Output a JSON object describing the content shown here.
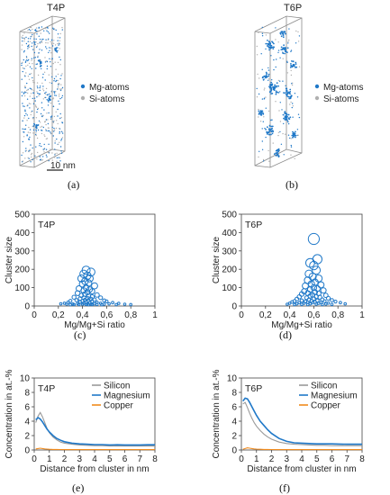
{
  "colors": {
    "mg": "#1f78c8",
    "si": "#b0b0b0",
    "silicon": "#9a9a9a",
    "magnesium": "#1f78c8",
    "copper": "#f08a1c",
    "axis": "#444444"
  },
  "panels": {
    "a": {
      "title": "T4P",
      "legend": [
        "Mg-atoms",
        "Si-atoms"
      ],
      "scale": "10 nm",
      "caption": "(a)"
    },
    "b": {
      "title": "T6P",
      "legend": [
        "Mg-atoms",
        "Si-atoms"
      ],
      "caption": "(b)"
    },
    "c": {
      "caption": "(c)"
    },
    "d": {
      "caption": "(d)"
    },
    "e": {
      "caption": "(e)"
    },
    "f": {
      "caption": "(f)"
    }
  },
  "chart_data": [
    {
      "id": "c",
      "type": "scatter",
      "panel_label": "T4P",
      "xlabel": "Mg/Mg+Si ratio",
      "ylabel": "Cluster size",
      "xlim": [
        0,
        1
      ],
      "ylim": [
        0,
        500
      ],
      "xticks": [
        "0",
        "0,2",
        "0,4",
        "0,6",
        "0,8",
        "1"
      ],
      "yticks": [
        "0",
        "100",
        "200",
        "300",
        "400",
        "500"
      ],
      "points": [
        [
          0.43,
          195
        ],
        [
          0.47,
          185
        ],
        [
          0.41,
          175
        ],
        [
          0.44,
          165
        ],
        [
          0.39,
          150
        ],
        [
          0.46,
          150
        ],
        [
          0.42,
          135
        ],
        [
          0.45,
          125
        ],
        [
          0.4,
          120
        ],
        [
          0.5,
          110
        ],
        [
          0.43,
          100
        ],
        [
          0.37,
          95
        ],
        [
          0.46,
          90
        ],
        [
          0.41,
          85
        ],
        [
          0.48,
          80
        ],
        [
          0.44,
          75
        ],
        [
          0.36,
          70
        ],
        [
          0.42,
          65
        ],
        [
          0.52,
          60
        ],
        [
          0.39,
          58
        ],
        [
          0.45,
          55
        ],
        [
          0.48,
          50
        ],
        [
          0.33,
          48
        ],
        [
          0.41,
          45
        ],
        [
          0.55,
          45
        ],
        [
          0.44,
          42
        ],
        [
          0.38,
          40
        ],
        [
          0.47,
          38
        ],
        [
          0.5,
          35
        ],
        [
          0.42,
          33
        ],
        [
          0.35,
          32
        ],
        [
          0.58,
          30
        ],
        [
          0.45,
          30
        ],
        [
          0.4,
          28
        ],
        [
          0.3,
          28
        ],
        [
          0.6,
          25
        ],
        [
          0.48,
          25
        ],
        [
          0.43,
          22
        ],
        [
          0.38,
          22
        ],
        [
          0.52,
          20
        ],
        [
          0.28,
          20
        ],
        [
          0.65,
          18
        ],
        [
          0.46,
          18
        ],
        [
          0.41,
          15
        ],
        [
          0.25,
          15
        ],
        [
          0.55,
          15
        ],
        [
          0.7,
          14
        ],
        [
          0.36,
          13
        ],
        [
          0.5,
          12
        ],
        [
          0.62,
          12
        ],
        [
          0.44,
          12
        ],
        [
          0.22,
          12
        ],
        [
          0.32,
          11
        ],
        [
          0.47,
          10
        ],
        [
          0.4,
          10
        ],
        [
          0.58,
          10
        ],
        [
          0.75,
          10
        ],
        [
          0.27,
          10
        ],
        [
          0.52,
          9
        ],
        [
          0.43,
          9
        ],
        [
          0.37,
          8
        ],
        [
          0.68,
          8
        ],
        [
          0.33,
          8
        ],
        [
          0.48,
          8
        ],
        [
          0.8,
          8
        ],
        [
          0.56,
          7
        ],
        [
          0.45,
          7
        ],
        [
          0.3,
          7
        ]
      ]
    },
    {
      "id": "d",
      "type": "scatter",
      "panel_label": "T6P",
      "xlabel": "Mg/Mg+Si ratio",
      "ylabel": "Cluster size",
      "xlim": [
        0,
        1
      ],
      "ylim": [
        0,
        500
      ],
      "xticks": [
        "0",
        "0,2",
        "0,4",
        "0,6",
        "0,8",
        "1"
      ],
      "yticks": [
        "0",
        "100",
        "200",
        "300",
        "400",
        "500"
      ],
      "points": [
        [
          0.6,
          365
        ],
        [
          0.63,
          255
        ],
        [
          0.57,
          235
        ],
        [
          0.6,
          220
        ],
        [
          0.62,
          195
        ],
        [
          0.56,
          175
        ],
        [
          0.59,
          160
        ],
        [
          0.64,
          150
        ],
        [
          0.55,
          140
        ],
        [
          0.61,
          130
        ],
        [
          0.58,
          120
        ],
        [
          0.66,
          115
        ],
        [
          0.53,
          110
        ],
        [
          0.6,
          100
        ],
        [
          0.63,
          95
        ],
        [
          0.57,
          90
        ],
        [
          0.68,
          85
        ],
        [
          0.52,
          80
        ],
        [
          0.61,
          75
        ],
        [
          0.55,
          70
        ],
        [
          0.64,
          68
        ],
        [
          0.5,
          65
        ],
        [
          0.59,
          60
        ],
        [
          0.7,
          58
        ],
        [
          0.57,
          55
        ],
        [
          0.62,
          52
        ],
        [
          0.48,
          50
        ],
        [
          0.65,
          48
        ],
        [
          0.54,
          45
        ],
        [
          0.72,
          42
        ],
        [
          0.6,
          40
        ],
        [
          0.46,
          38
        ],
        [
          0.67,
          35
        ],
        [
          0.56,
          34
        ],
        [
          0.75,
          32
        ],
        [
          0.63,
          30
        ],
        [
          0.5,
          30
        ],
        [
          0.58,
          28
        ],
        [
          0.44,
          27
        ],
        [
          0.69,
          26
        ],
        [
          0.53,
          25
        ],
        [
          0.78,
          24
        ],
        [
          0.61,
          22
        ],
        [
          0.42,
          22
        ],
        [
          0.55,
          20
        ],
        [
          0.66,
          20
        ],
        [
          0.48,
          18
        ],
        [
          0.82,
          18
        ],
        [
          0.59,
          17
        ],
        [
          0.72,
          16
        ],
        [
          0.4,
          15
        ],
        [
          0.52,
          15
        ],
        [
          0.64,
          14
        ],
        [
          0.86,
          12
        ],
        [
          0.57,
          12
        ],
        [
          0.46,
          12
        ],
        [
          0.7,
          11
        ],
        [
          0.38,
          10
        ],
        [
          0.62,
          10
        ],
        [
          0.75,
          9
        ],
        [
          0.5,
          9
        ],
        [
          0.55,
          8
        ],
        [
          0.67,
          8
        ],
        [
          0.44,
          8
        ]
      ]
    },
    {
      "id": "e",
      "type": "line",
      "panel_label": "T4P",
      "xlabel": "Distance from cluster in nm",
      "ylabel": "Concentration in at.-%",
      "xlim": [
        0,
        8
      ],
      "ylim": [
        0,
        10
      ],
      "xticks": [
        "0",
        "1",
        "2",
        "3",
        "4",
        "5",
        "6",
        "7",
        "8"
      ],
      "yticks": [
        "0",
        "2",
        "4",
        "6",
        "8",
        "10"
      ],
      "x": [
        0.1,
        0.25,
        0.4,
        0.55,
        0.7,
        0.85,
        1,
        1.25,
        1.5,
        1.75,
        2,
        2.5,
        3,
        3.5,
        4,
        4.5,
        5,
        5.5,
        6,
        6.5,
        7,
        7.5,
        8
      ],
      "series": [
        {
          "name": "Silicon",
          "color": "silicon",
          "values": [
            3.8,
            4.7,
            5.2,
            4.6,
            3.8,
            3.0,
            2.4,
            1.8,
            1.4,
            1.1,
            0.95,
            0.8,
            0.7,
            0.65,
            0.6,
            0.6,
            0.55,
            0.55,
            0.55,
            0.55,
            0.55,
            0.55,
            0.55
          ]
        },
        {
          "name": "Magnesium",
          "color": "magnesium",
          "values": [
            4.2,
            4.5,
            4.3,
            3.9,
            3.4,
            2.9,
            2.5,
            2.0,
            1.6,
            1.35,
            1.15,
            0.95,
            0.85,
            0.8,
            0.75,
            0.75,
            0.7,
            0.72,
            0.7,
            0.7,
            0.7,
            0.72,
            0.72
          ]
        },
        {
          "name": "Copper",
          "color": "copper",
          "values": [
            0.15,
            0.2,
            0.25,
            0.2,
            0.15,
            0.12,
            0.1,
            0.08,
            0.07,
            0.06,
            0.05,
            0.05,
            0.05,
            0.05,
            0.05,
            0.05,
            0.05,
            0.05,
            0.05,
            0.05,
            0.05,
            0.05,
            0.05
          ]
        }
      ]
    },
    {
      "id": "f",
      "type": "line",
      "panel_label": "T6P",
      "xlabel": "Distance from cluster in nm",
      "ylabel": "Concentration in at.-%",
      "xlim": [
        0,
        8
      ],
      "ylim": [
        0,
        10
      ],
      "xticks": [
        "0",
        "1",
        "2",
        "3",
        "4",
        "5",
        "6",
        "7",
        "8"
      ],
      "yticks": [
        "0",
        "2",
        "4",
        "6",
        "8",
        "10"
      ],
      "x": [
        0.1,
        0.25,
        0.4,
        0.55,
        0.7,
        0.85,
        1,
        1.25,
        1.5,
        1.75,
        2,
        2.5,
        3,
        3.5,
        4,
        4.5,
        5,
        5.5,
        6,
        6.5,
        7,
        7.5,
        8
      ],
      "series": [
        {
          "name": "Silicon",
          "color": "silicon",
          "values": [
            6.4,
            6.6,
            5.9,
            5.1,
            4.4,
            3.8,
            3.3,
            2.7,
            2.2,
            1.8,
            1.5,
            1.1,
            0.9,
            0.8,
            0.75,
            0.7,
            0.65,
            0.65,
            0.6,
            0.6,
            0.6,
            0.6,
            0.6
          ]
        },
        {
          "name": "Magnesium",
          "color": "magnesium",
          "values": [
            6.8,
            7.2,
            7.1,
            6.6,
            6.0,
            5.4,
            4.8,
            4.0,
            3.4,
            2.8,
            2.3,
            1.6,
            1.2,
            1.0,
            0.95,
            0.9,
            0.85,
            0.85,
            0.85,
            0.82,
            0.8,
            0.8,
            0.8
          ]
        },
        {
          "name": "Copper",
          "color": "copper",
          "values": [
            0.1,
            0.2,
            0.3,
            0.25,
            0.2,
            0.15,
            0.12,
            0.1,
            0.08,
            0.07,
            0.06,
            0.05,
            0.05,
            0.05,
            0.05,
            0.05,
            0.05,
            0.05,
            0.05,
            0.05,
            0.05,
            0.05,
            0.05
          ]
        }
      ]
    }
  ]
}
